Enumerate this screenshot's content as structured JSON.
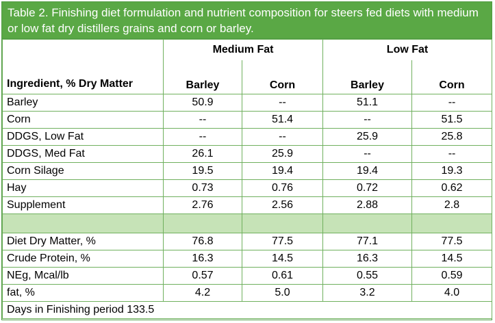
{
  "table": {
    "title": "Table 2. Finishing diet formulation and nutrient composition for steers fed diets with medium or low fat dry distillers grains and corn or barley.",
    "group_headers": [
      "Medium Fat",
      "Low Fat"
    ],
    "row_header_label": "Ingredient, % Dry Matter",
    "column_headers": [
      "Barley",
      "Corn",
      "Barley",
      "Corn"
    ],
    "ingredient_rows": [
      {
        "label": "Barley",
        "values": [
          "50.9",
          "--",
          "51.1",
          "--"
        ]
      },
      {
        "label": "Corn",
        "values": [
          "--",
          "51.4",
          "--",
          "51.5"
        ]
      },
      {
        "label": "DDGS, Low Fat",
        "values": [
          "--",
          "--",
          "25.9",
          "25.8"
        ]
      },
      {
        "label": "DDGS, Med Fat",
        "values": [
          "26.1",
          "25.9",
          "--",
          "--"
        ]
      },
      {
        "label": "Corn Silage",
        "values": [
          "19.5",
          "19.4",
          "19.4",
          "19.3"
        ]
      },
      {
        "label": "Hay",
        "values": [
          "0.73",
          "0.76",
          "0.72",
          "0.62"
        ]
      },
      {
        "label": "Supplement",
        "values": [
          "2.76",
          "2.56",
          "2.88",
          "2.8"
        ]
      }
    ],
    "nutrient_rows": [
      {
        "label": "Diet Dry Matter, %",
        "values": [
          "76.8",
          "77.5",
          "77.1",
          "77.5"
        ]
      },
      {
        "label": "Crude Protein, %",
        "values": [
          "16.3",
          "14.5",
          "16.3",
          "14.5"
        ]
      },
      {
        "label": "NEg, Mcal/lb",
        "values": [
          "0.57",
          "0.61",
          "0.55",
          "0.59"
        ]
      },
      {
        "label": "fat, %",
        "values": [
          "4.2",
          "5.0",
          "3.2",
          "4.0"
        ]
      }
    ],
    "footnote": "Days in Finishing period 133.5",
    "colors": {
      "title_bg": "#5aa845",
      "border": "#6fb05d",
      "spacer_bg": "#c6e3b7"
    }
  }
}
